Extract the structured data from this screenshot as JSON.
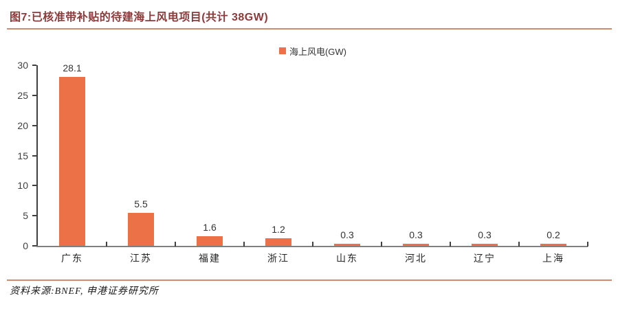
{
  "figure": {
    "title": "图7:已核准带补贴的待建海上风电项目(共计 38GW)",
    "source_note": "资料来源:BNEF, 申港证券研究所"
  },
  "legend": {
    "label": "海上风电(GW)"
  },
  "chart_data": {
    "type": "bar",
    "title": "已核准带补贴的待建海上风电项目(共计 38GW)",
    "series_name": "海上风电(GW)",
    "categories": [
      "广东",
      "江苏",
      "福建",
      "浙江",
      "山东",
      "河北",
      "辽宁",
      "上海"
    ],
    "values": [
      28.1,
      5.5,
      1.6,
      1.2,
      0.3,
      0.3,
      0.3,
      0.2
    ],
    "value_labels": [
      "28.1",
      "5.5",
      "1.6",
      "1.2",
      "0.3",
      "0.3",
      "0.3",
      "0.2"
    ],
    "xlabel": "",
    "ylabel": "",
    "ylim": [
      0,
      30
    ],
    "yticks": [
      0,
      5,
      10,
      15,
      20,
      25,
      30
    ],
    "grid": false,
    "legend_position": "top-center",
    "total_gw": "38GW"
  },
  "colors": {
    "bar": "#ED7146",
    "title_text": "#8B3A3A",
    "rule": "#D08A6C",
    "x_axis": "#808080",
    "y_axis": "#3F3F3F",
    "label_text": "#333333"
  }
}
